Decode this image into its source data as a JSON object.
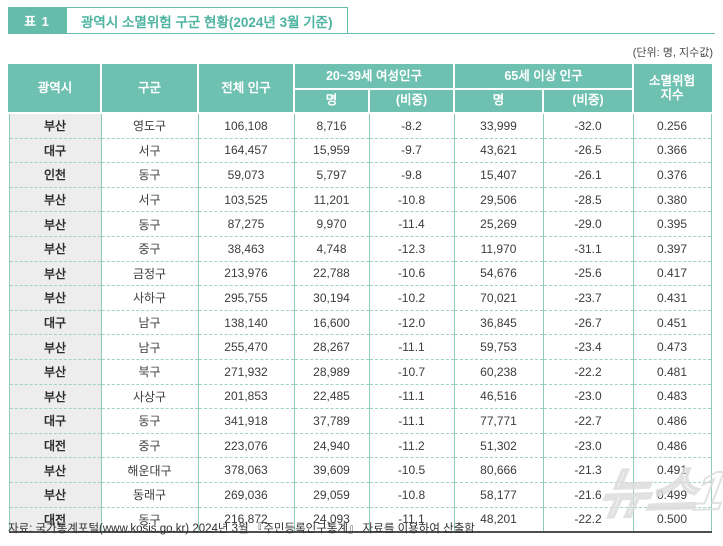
{
  "colors": {
    "accent_teal": "#66bcab",
    "table_header_bg": "#6ec0b1",
    "first_col_bg": "#ededed",
    "grid_line": "#8ecbbd",
    "bottom_border": "#4d4d4d",
    "watermark_gray": "#dcdcdc"
  },
  "header": {
    "badge": "표 1",
    "title": "광역시 소멸위험 구군 현황(2024년 3월 기준)",
    "unit_note": "(단위: 명, 지수값)"
  },
  "table_head": {
    "city": "광역시",
    "district": "구군",
    "total_pop": "전체 인구",
    "women_group": "20~39세 여성인구",
    "senior_group": "65세 이상 인구",
    "risk_index": "소멸위험\n지수",
    "count": "명",
    "share": "(비중)"
  },
  "chart_data": {
    "type": "table",
    "title": "광역시 소멸위험 구군 현황(2024년 3월 기준)",
    "unit": "명, 지수값",
    "columns": [
      "광역시",
      "구군",
      "전체 인구",
      "20~39세 여성인구 명",
      "20~39세 여성인구 (비중)",
      "65세 이상 인구 명",
      "65세 이상 인구 (비중)",
      "소멸위험지수"
    ],
    "column_keys": [
      "city",
      "district",
      "total-pop",
      "women-count",
      "women-share",
      "senior-count",
      "senior-share",
      "risk-index"
    ],
    "rows": [
      [
        "부산",
        "영도구",
        "106,108",
        "8,716",
        "-8.2",
        "33,999",
        "-32.0",
        "0.256"
      ],
      [
        "대구",
        "서구",
        "164,457",
        "15,959",
        "-9.7",
        "43,621",
        "-26.5",
        "0.366"
      ],
      [
        "인천",
        "동구",
        "59,073",
        "5,797",
        "-9.8",
        "15,407",
        "-26.1",
        "0.376"
      ],
      [
        "부산",
        "서구",
        "103,525",
        "11,201",
        "-10.8",
        "29,506",
        "-28.5",
        "0.380"
      ],
      [
        "부산",
        "동구",
        "87,275",
        "9,970",
        "-11.4",
        "25,269",
        "-29.0",
        "0.395"
      ],
      [
        "부산",
        "중구",
        "38,463",
        "4,748",
        "-12.3",
        "11,970",
        "-31.1",
        "0.397"
      ],
      [
        "부산",
        "금정구",
        "213,976",
        "22,788",
        "-10.6",
        "54,676",
        "-25.6",
        "0.417"
      ],
      [
        "부산",
        "사하구",
        "295,755",
        "30,194",
        "-10.2",
        "70,021",
        "-23.7",
        "0.431"
      ],
      [
        "대구",
        "남구",
        "138,140",
        "16,600",
        "-12.0",
        "36,845",
        "-26.7",
        "0.451"
      ],
      [
        "부산",
        "남구",
        "255,470",
        "28,267",
        "-11.1",
        "59,753",
        "-23.4",
        "0.473"
      ],
      [
        "부산",
        "북구",
        "271,932",
        "28,989",
        "-10.7",
        "60,238",
        "-22.2",
        "0.481"
      ],
      [
        "부산",
        "사상구",
        "201,853",
        "22,485",
        "-11.1",
        "46,516",
        "-23.0",
        "0.483"
      ],
      [
        "대구",
        "동구",
        "341,918",
        "37,789",
        "-11.1",
        "77,771",
        "-22.7",
        "0.486"
      ],
      [
        "대전",
        "중구",
        "223,076",
        "24,940",
        "-11.2",
        "51,302",
        "-23.0",
        "0.486"
      ],
      [
        "부산",
        "해운대구",
        "378,063",
        "39,609",
        "-10.5",
        "80,666",
        "-21.3",
        "0.491"
      ],
      [
        "부산",
        "동래구",
        "269,036",
        "29,059",
        "-10.8",
        "58,177",
        "-21.6",
        "0.499"
      ],
      [
        "대전",
        "동구",
        "216,872",
        "24,093",
        "-11.1",
        "48,201",
        "-22.2",
        "0.500"
      ]
    ]
  },
  "footer": {
    "source": "자료: 국가통계포털(www.kosis.go.kr) 2024년 3월 『주민등록인구통계』 자료를 이용하여 산출함"
  },
  "watermark": "뉴스1"
}
